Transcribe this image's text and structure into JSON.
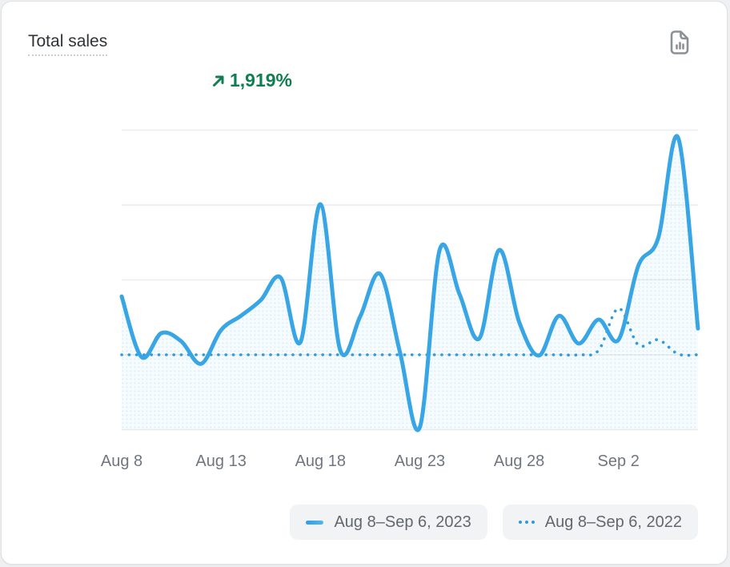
{
  "card": {
    "title": "Total sales",
    "metric": {
      "value": "1,919%",
      "direction": "up",
      "color": "#0f7e50"
    },
    "report_icon": "bar-chart-file-icon"
  },
  "legend": {
    "position": "bottom-right",
    "items": [
      {
        "label": "Aug 8–Sep 6, 2023",
        "swatch": "solid-line",
        "color": "#38a5e5"
      },
      {
        "label": "Aug 8–Sep 6, 2022",
        "swatch": "dotted-line",
        "color": "#2d9bdd"
      }
    ]
  },
  "chart_data": {
    "type": "line",
    "title": "Total sales",
    "xlabel": "",
    "ylabel": "",
    "grid": "horizontal",
    "y_axis_labels_visible": false,
    "ylim": [
      -1,
      3
    ],
    "y_unit": "relative sales (gridline = 1 unit, baseline = 0)",
    "x": [
      "Aug 8",
      "Aug 9",
      "Aug 10",
      "Aug 11",
      "Aug 12",
      "Aug 13",
      "Aug 14",
      "Aug 15",
      "Aug 16",
      "Aug 17",
      "Aug 18",
      "Aug 19",
      "Aug 20",
      "Aug 21",
      "Aug 22",
      "Aug 23",
      "Aug 24",
      "Aug 25",
      "Aug 26",
      "Aug 27",
      "Aug 28",
      "Aug 29",
      "Aug 30",
      "Aug 31",
      "Sep 1",
      "Sep 2",
      "Sep 3",
      "Sep 4",
      "Sep 5",
      "Sep 6"
    ],
    "x_tick_labels": [
      "Aug 8",
      "Aug 13",
      "Aug 18",
      "Aug 23",
      "Aug 28",
      "Sep 2"
    ],
    "x_tick_indices": [
      0,
      5,
      10,
      15,
      20,
      25
    ],
    "series": [
      {
        "name": "Aug 8–Sep 6, 2023",
        "style": "solid",
        "color": "#38a5e5",
        "values": [
          0.78,
          -0.03,
          0.29,
          0.18,
          -0.12,
          0.33,
          0.52,
          0.73,
          1.03,
          0.17,
          2.01,
          0.06,
          0.51,
          1.08,
          0.04,
          -0.97,
          1.4,
          0.81,
          0.22,
          1.4,
          0.44,
          -0.01,
          0.52,
          0.15,
          0.47,
          0.2,
          1.19,
          1.56,
          2.9,
          0.35
        ]
      },
      {
        "name": "Aug 8–Sep 6, 2022",
        "style": "dotted",
        "color": "#2d9bdd",
        "values": [
          0,
          0,
          0,
          0,
          0,
          0,
          0,
          0,
          0,
          0,
          0,
          0,
          0,
          0,
          0,
          0,
          0,
          0,
          0,
          0,
          0,
          0,
          0,
          0,
          0.06,
          0.62,
          0.13,
          0.2,
          0.01,
          0
        ]
      }
    ],
    "annotations": [
      {
        "text": "1,919%",
        "type": "percent-change-up"
      }
    ],
    "legend_position": "bottom-right"
  }
}
